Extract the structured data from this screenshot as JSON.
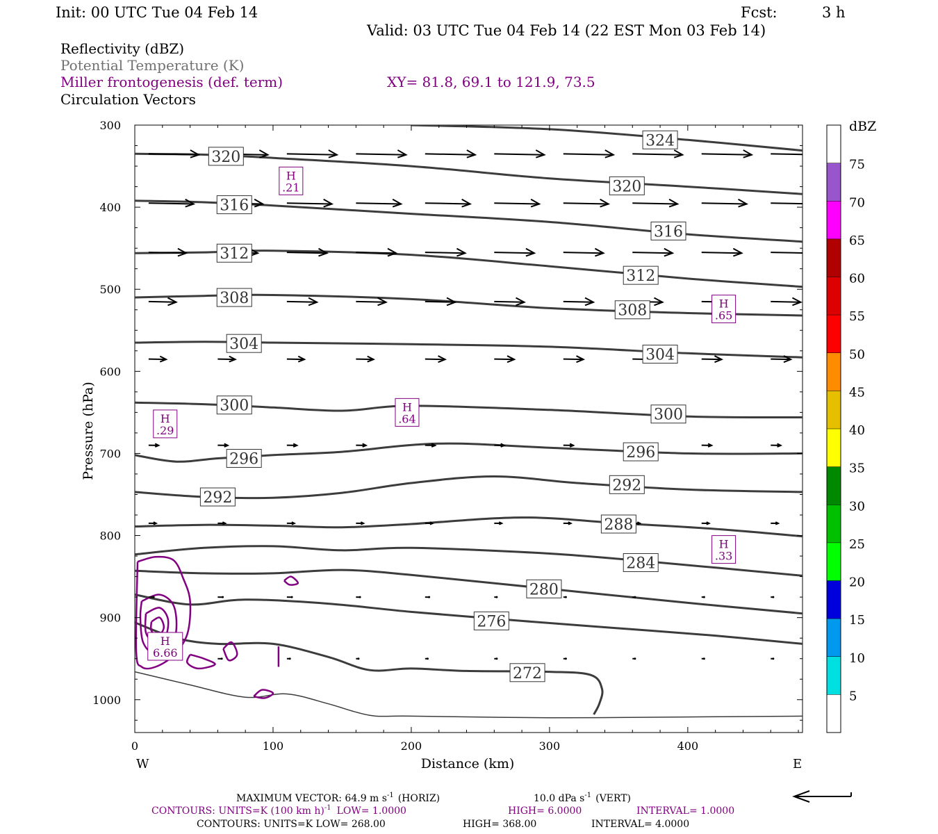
{
  "header": {
    "init": "Init: 00 UTC Tue 04 Feb 14",
    "fcst_label": "Fcst:",
    "fcst_value": "3 h",
    "valid": "Valid: 03 UTC Tue 04 Feb 14 (22 EST Mon 03 Feb 14)",
    "fields": [
      {
        "text": "Reflectivity (dBZ)",
        "color": "#000000"
      },
      {
        "text": "Potential Temperature (K)",
        "color": "#707070"
      },
      {
        "text": "Miller frontogenesis (def. term)",
        "color": "#800080"
      },
      {
        "text": "Circulation Vectors",
        "color": "#000000"
      }
    ],
    "xy": "XY=  81.8, 69.1 to 121.9, 73.5"
  },
  "colors": {
    "theta": "#3c3c3c",
    "fronto": "#800080",
    "vector": "#000000"
  },
  "chart_data": {
    "type": "line",
    "xlabel": "Distance (km)",
    "ylabel": "Pressure (hPa)",
    "xlim": [
      0,
      483
    ],
    "ylim": [
      1040,
      300
    ],
    "y_scale": "linear",
    "x_ticks": [
      0,
      100,
      200,
      300,
      400
    ],
    "y_ticks": [
      300,
      400,
      500,
      600,
      700,
      800,
      900,
      1000
    ],
    "x_end_labels": {
      "left": "W",
      "right": "E"
    },
    "theta_contours": [
      {
        "label": "324",
        "label_at": [
          380,
          318
        ],
        "points": [
          [
            200,
            300
          ],
          [
            300,
            305
          ],
          [
            400,
            318
          ],
          [
            483,
            331
          ]
        ]
      },
      {
        "label": "320",
        "label_at": [
          66,
          338
        ],
        "points": [
          [
            0,
            335
          ],
          [
            50,
            336
          ],
          [
            100,
            340
          ],
          [
            200,
            350
          ],
          [
            300,
            365
          ],
          [
            400,
            375
          ],
          [
            483,
            384
          ]
        ]
      },
      {
        "label": "320",
        "label_at": [
          356,
          374
        ],
        "points": []
      },
      {
        "label": "316",
        "label_at": [
          72,
          397
        ],
        "points": [
          [
            0,
            392
          ],
          [
            50,
            394
          ],
          [
            100,
            398
          ],
          [
            200,
            408
          ],
          [
            300,
            418
          ],
          [
            400,
            433
          ],
          [
            483,
            442
          ]
        ]
      },
      {
        "label": "316",
        "label_at": [
          386,
          429
        ],
        "points": []
      },
      {
        "label": "312",
        "label_at": [
          72,
          456
        ],
        "points": [
          [
            0,
            456
          ],
          [
            50,
            455
          ],
          [
            100,
            453
          ],
          [
            200,
            458
          ],
          [
            300,
            472
          ],
          [
            400,
            487
          ],
          [
            483,
            497
          ]
        ]
      },
      {
        "label": "312",
        "label_at": [
          366,
          483
        ],
        "points": []
      },
      {
        "label": "308",
        "label_at": [
          72,
          510
        ],
        "points": [
          [
            0,
            510
          ],
          [
            50,
            508
          ],
          [
            100,
            507
          ],
          [
            200,
            512
          ],
          [
            300,
            523
          ],
          [
            400,
            529
          ],
          [
            483,
            532
          ]
        ]
      },
      {
        "label": "308",
        "label_at": [
          360,
          525
        ],
        "points": []
      },
      {
        "label": "304",
        "label_at": [
          79,
          566
        ],
        "points": [
          [
            0,
            565
          ],
          [
            50,
            564
          ],
          [
            100,
            565
          ],
          [
            200,
            567
          ],
          [
            300,
            570
          ],
          [
            400,
            578
          ],
          [
            483,
            583
          ]
        ]
      },
      {
        "label": "304",
        "label_at": [
          380,
          579
        ],
        "points": []
      },
      {
        "label": "300",
        "label_at": [
          72,
          641
        ],
        "points": [
          [
            0,
            638
          ],
          [
            50,
            640
          ],
          [
            100,
            644
          ],
          [
            150,
            648
          ],
          [
            200,
            642
          ],
          [
            300,
            647
          ],
          [
            400,
            655
          ],
          [
            483,
            656
          ]
        ]
      },
      {
        "label": "300",
        "label_at": [
          386,
          652
        ],
        "points": []
      },
      {
        "label": "296",
        "label_at": [
          79,
          706
        ],
        "points": [
          [
            0,
            702
          ],
          [
            30,
            710
          ],
          [
            60,
            706
          ],
          [
            100,
            702
          ],
          [
            150,
            698
          ],
          [
            220,
            688
          ],
          [
            300,
            693
          ],
          [
            400,
            700
          ],
          [
            483,
            700
          ]
        ]
      },
      {
        "label": "296",
        "label_at": [
          366,
          698
        ],
        "points": []
      },
      {
        "label": "292",
        "label_at": [
          60,
          753
        ],
        "points": [
          [
            0,
            747
          ],
          [
            50,
            753
          ],
          [
            100,
            754
          ],
          [
            150,
            748
          ],
          [
            200,
            736
          ],
          [
            260,
            728
          ],
          [
            320,
            736
          ],
          [
            400,
            744
          ],
          [
            483,
            747
          ]
        ]
      },
      {
        "label": "292",
        "label_at": [
          356,
          738
        ],
        "points": []
      },
      {
        "label": "288",
        "label_at": [
          350,
          786
        ],
        "points": [
          [
            0,
            789
          ],
          [
            50,
            787
          ],
          [
            100,
            788
          ],
          [
            150,
            790
          ],
          [
            200,
            786
          ],
          [
            280,
            778
          ],
          [
            350,
            785
          ],
          [
            420,
            792
          ],
          [
            483,
            801
          ]
        ]
      },
      {
        "label": "284",
        "label_at": [
          366,
          833
        ],
        "points": [
          [
            0,
            823
          ],
          [
            50,
            815
          ],
          [
            100,
            813
          ],
          [
            150,
            818
          ],
          [
            200,
            815
          ],
          [
            300,
            822
          ],
          [
            380,
            833
          ],
          [
            483,
            849
          ]
        ]
      },
      {
        "label": "280",
        "label_at": [
          296,
          865
        ],
        "points": [
          [
            0,
            843
          ],
          [
            50,
            846
          ],
          [
            100,
            846
          ],
          [
            150,
            842
          ],
          [
            200,
            848
          ],
          [
            300,
            865
          ],
          [
            400,
            882
          ],
          [
            483,
            895
          ]
        ]
      },
      {
        "label": "276",
        "label_at": [
          258,
          904
        ],
        "points": [
          [
            0,
            872
          ],
          [
            40,
            884
          ],
          [
            80,
            878
          ],
          [
            140,
            883
          ],
          [
            200,
            893
          ],
          [
            280,
            904
          ],
          [
            350,
            913
          ],
          [
            420,
            922
          ],
          [
            483,
            932
          ]
        ]
      },
      {
        "label": "272",
        "label_at": [
          284,
          967
        ],
        "points": [
          [
            0,
            906
          ],
          [
            30,
            925
          ],
          [
            60,
            932
          ],
          [
            100,
            932
          ],
          [
            140,
            948
          ],
          [
            170,
            964
          ],
          [
            200,
            962
          ],
          [
            240,
            965
          ],
          [
            300,
            966
          ],
          [
            330,
            970
          ],
          [
            338,
            987
          ],
          [
            336,
            1005
          ],
          [
            332,
            1018
          ]
        ]
      },
      {
        "label": "",
        "label_at": null,
        "points": [
          [
            0,
            966
          ],
          [
            40,
            982
          ],
          [
            80,
            997
          ],
          [
            110,
            993
          ],
          [
            140,
            1005
          ],
          [
            170,
            1019
          ],
          [
            200,
            1020
          ],
          [
            300,
            1022
          ],
          [
            400,
            1021
          ],
          [
            483,
            1020
          ]
        ]
      }
    ],
    "fronto_maxima": [
      {
        "label": "H",
        "value": ".21",
        "at": [
          113,
          368
        ]
      },
      {
        "label": "H",
        "value": ".65",
        "at": [
          426,
          524
        ]
      },
      {
        "label": "H",
        "value": ".64",
        "at": [
          197,
          650
        ]
      },
      {
        "label": "H",
        "value": ".29",
        "at": [
          22,
          664
        ]
      },
      {
        "label": "H",
        "value": ".33",
        "at": [
          426,
          817
        ]
      },
      {
        "label": "H",
        "value": "6.66",
        "at": [
          22,
          935
        ]
      }
    ],
    "fronto_contours": [
      [
        [
          2,
          832
        ],
        [
          15,
          826
        ],
        [
          28,
          830
        ],
        [
          35,
          852
        ],
        [
          40,
          880
        ],
        [
          38,
          920
        ],
        [
          28,
          946
        ],
        [
          15,
          960
        ],
        [
          5,
          960
        ],
        [
          1,
          940
        ]
      ],
      [
        [
          5,
          880
        ],
        [
          18,
          872
        ],
        [
          28,
          885
        ],
        [
          30,
          915
        ],
        [
          25,
          938
        ],
        [
          14,
          944
        ],
        [
          6,
          930
        ],
        [
          4,
          900
        ]
      ],
      [
        [
          8,
          895
        ],
        [
          18,
          888
        ],
        [
          24,
          902
        ],
        [
          22,
          924
        ],
        [
          14,
          930
        ],
        [
          8,
          918
        ]
      ],
      [
        [
          12,
          905
        ],
        [
          18,
          900
        ],
        [
          21,
          912
        ],
        [
          17,
          922
        ],
        [
          12,
          916
        ]
      ],
      [
        [
          40,
          945
        ],
        [
          50,
          950
        ],
        [
          58,
          957
        ],
        [
          46,
          962
        ],
        [
          38,
          955
        ]
      ],
      [
        [
          64,
          938
        ],
        [
          70,
          930
        ],
        [
          74,
          945
        ],
        [
          68,
          952
        ]
      ],
      [
        [
          108,
          855
        ],
        [
          113,
          850
        ],
        [
          118,
          858
        ],
        [
          112,
          860
        ]
      ],
      [
        [
          86,
          996
        ],
        [
          92,
          988
        ],
        [
          100,
          992
        ],
        [
          94,
          998
        ]
      ],
      [
        [
          104,
          935
        ],
        [
          104,
          960
        ]
      ]
    ],
    "vectors": {
      "rows": [
        {
          "p": 335,
          "xs": [
            10,
            60,
            110,
            160,
            210,
            260,
            310,
            360,
            410,
            460
          ],
          "u": [
            1.0,
            1.0,
            1.0,
            1.0,
            1.0,
            1.0,
            1.0,
            1.0,
            1.0,
            1.0
          ]
        },
        {
          "p": 395,
          "xs": [
            10,
            60,
            110,
            160,
            210,
            260,
            310,
            360,
            410,
            460
          ],
          "u": [
            0.9,
            0.9,
            0.9,
            0.9,
            0.9,
            0.9,
            0.9,
            0.9,
            0.9,
            0.9
          ]
        },
        {
          "p": 455,
          "xs": [
            10,
            60,
            110,
            160,
            210,
            260,
            310,
            360,
            410,
            460
          ],
          "u": [
            0.75,
            0.8,
            0.8,
            0.8,
            0.8,
            0.8,
            0.8,
            0.8,
            0.8,
            0.8
          ]
        },
        {
          "p": 515,
          "xs": [
            10,
            60,
            110,
            160,
            210,
            260,
            310,
            360,
            410,
            460
          ],
          "u": [
            0.55,
            0.6,
            0.6,
            0.6,
            0.6,
            0.6,
            0.6,
            0.6,
            0.6,
            0.6
          ]
        },
        {
          "p": 585,
          "xs": [
            10,
            60,
            110,
            160,
            210,
            260,
            310,
            360,
            410,
            460
          ],
          "u": [
            0.35,
            0.35,
            0.35,
            0.35,
            0.4,
            0.4,
            0.4,
            0.4,
            0.4,
            0.4
          ]
        },
        {
          "p": 690,
          "xs": [
            10,
            60,
            110,
            160,
            210,
            260,
            310,
            360,
            410,
            460
          ],
          "u": [
            0.2,
            0.2,
            0.2,
            0.2,
            0.2,
            0.2,
            0.2,
            0.2,
            0.2,
            0.2
          ]
        },
        {
          "p": 785,
          "xs": [
            10,
            60,
            110,
            160,
            210,
            260,
            310,
            360,
            410,
            460
          ],
          "u": [
            0.15,
            0.15,
            0.15,
            0.15,
            0.15,
            0.15,
            0.15,
            0.15,
            0.15,
            0.15
          ]
        },
        {
          "p": 875,
          "xs": [
            10,
            60,
            110,
            160,
            210,
            260,
            310,
            360,
            410,
            460
          ],
          "u": [
            0.1,
            0.1,
            0.1,
            0.08,
            0.08,
            0.05,
            0.05,
            0.05,
            0.05,
            0.05
          ]
        },
        {
          "p": 950,
          "xs": [
            10,
            60,
            110,
            160,
            210,
            260,
            310,
            360,
            410,
            460
          ],
          "u": [
            0.08,
            0.08,
            0.06,
            0.05,
            0.05,
            0.05,
            0.05,
            0.05,
            0.05,
            0.05
          ]
        }
      ]
    }
  },
  "colorbar": {
    "title": "dBZ",
    "levels": [
      "5",
      "10",
      "15",
      "20",
      "25",
      "30",
      "35",
      "40",
      "45",
      "50",
      "55",
      "60",
      "65",
      "70",
      "75"
    ],
    "colors": [
      "#ffffff",
      "#00e0e0",
      "#0099ee",
      "#0000dd",
      "#00ff00",
      "#00c000",
      "#008800",
      "#ffff00",
      "#e6c000",
      "#ff8c00",
      "#ff0000",
      "#dd0000",
      "#b00000",
      "#ff00ff",
      "#9955cc",
      "#ffffff"
    ]
  },
  "footer": {
    "max_vector": "MAXIMUM VECTOR:  64.9 m s",
    "max_vector_exp": "-1",
    "horiz": "(HORIZ)",
    "vert_value": "10.0 dPa s",
    "vert_exp": "-1",
    "vert": "(VERT)",
    "purple_contours": "CONTOURS:  UNITS=K (100 km h)",
    "purple_exp": "-1",
    "purple_low": "LOW=   1.0000",
    "purple_high": "HIGH=   6.0000",
    "purple_interval": "INTERVAL=    1.0000",
    "black_contours": "CONTOURS:  UNITS=K   LOW=   268.00",
    "black_high": "HIGH=   368.00",
    "black_interval": "INTERVAL=    4.0000"
  }
}
